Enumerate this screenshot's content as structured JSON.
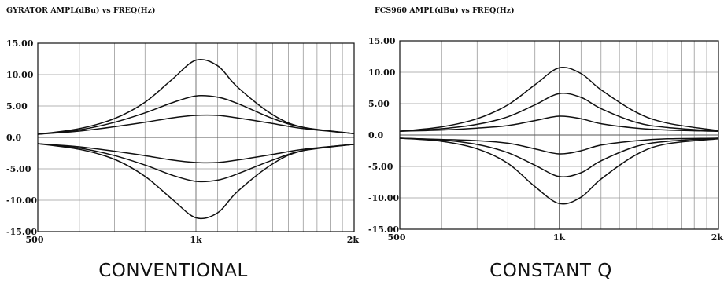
{
  "chart_data": [
    {
      "type": "line",
      "title": "GYRATOR AMPL(dBu) vs FREQ(Hz)",
      "caption": "CONVENTIONAL",
      "xlabel": "",
      "ylabel": "",
      "x_scale": "log",
      "xlim": [
        500,
        2000
      ],
      "ylim": [
        -15,
        15
      ],
      "x_ticks": [
        {
          "value": 500,
          "label": "500"
        },
        {
          "value": 1000,
          "label": "1k"
        },
        {
          "value": 2000,
          "label": "2k"
        }
      ],
      "y_ticks": [
        {
          "value": 15,
          "label": "15.00"
        },
        {
          "value": 10,
          "label": "10.00"
        },
        {
          "value": 5,
          "label": "5.00"
        },
        {
          "value": 0,
          "label": "0.0"
        },
        {
          "value": -5,
          "label": "-5.00"
        },
        {
          "value": -10,
          "label": "-10.00"
        },
        {
          "value": -15,
          "label": "-15.00"
        }
      ],
      "grid": true,
      "line_color": "#111111",
      "series": [
        {
          "x": [
            500,
            600,
            700,
            800,
            900,
            1000,
            1100,
            1200,
            1400,
            1600,
            2000
          ],
          "y": [
            0.5,
            1.4,
            3.0,
            5.6,
            9.2,
            12.3,
            11.4,
            8.0,
            3.6,
            1.6,
            0.6
          ]
        },
        {
          "x": [
            500,
            600,
            700,
            800,
            900,
            1000,
            1100,
            1200,
            1400,
            1600,
            2000
          ],
          "y": [
            0.5,
            1.2,
            2.4,
            3.9,
            5.5,
            6.6,
            6.4,
            5.4,
            3.0,
            1.6,
            0.6
          ]
        },
        {
          "x": [
            500,
            600,
            700,
            800,
            900,
            1000,
            1100,
            1200,
            1400,
            1600,
            2000
          ],
          "y": [
            0.5,
            1.0,
            1.7,
            2.4,
            3.1,
            3.5,
            3.5,
            3.1,
            2.2,
            1.4,
            0.6
          ]
        },
        {
          "x": [
            500,
            600,
            700,
            800,
            900,
            1000,
            1100,
            1200,
            1400,
            1600,
            2000
          ],
          "y": [
            -1.0,
            -1.5,
            -2.2,
            -2.9,
            -3.6,
            -4.0,
            -4.0,
            -3.6,
            -2.7,
            -1.9,
            -1.1
          ]
        },
        {
          "x": [
            500,
            600,
            700,
            800,
            900,
            1000,
            1100,
            1200,
            1400,
            1600,
            2000
          ],
          "y": [
            -1.0,
            -1.7,
            -2.9,
            -4.4,
            -6.0,
            -7.0,
            -6.8,
            -5.8,
            -3.6,
            -2.1,
            -1.1
          ]
        },
        {
          "x": [
            500,
            600,
            700,
            800,
            900,
            1000,
            1100,
            1200,
            1400,
            1600,
            2000
          ],
          "y": [
            -1.0,
            -1.9,
            -3.5,
            -6.2,
            -9.8,
            -12.8,
            -12.0,
            -8.6,
            -4.2,
            -2.1,
            -1.1
          ]
        }
      ]
    },
    {
      "type": "line",
      "title": "FCS960 AMPL(dBu) vs FREQ(Hz)",
      "caption": "CONSTANT Q",
      "xlabel": "",
      "ylabel": "",
      "x_scale": "log",
      "xlim": [
        500,
        2000
      ],
      "ylim": [
        -15,
        15
      ],
      "x_ticks": [
        {
          "value": 500,
          "label": "500"
        },
        {
          "value": 1000,
          "label": "1k"
        },
        {
          "value": 2000,
          "label": "2k"
        }
      ],
      "y_ticks": [
        {
          "value": 15,
          "label": "15.00"
        },
        {
          "value": 10,
          "label": "10.00"
        },
        {
          "value": 5,
          "label": "5.00"
        },
        {
          "value": 0,
          "label": "0.0"
        },
        {
          "value": -5,
          "label": "-5.00"
        },
        {
          "value": -10,
          "label": "-10.00"
        },
        {
          "value": -15,
          "label": "-15.00"
        }
      ],
      "grid": true,
      "line_color": "#111111",
      "series": [
        {
          "x": [
            500,
            600,
            700,
            800,
            900,
            1000,
            1100,
            1200,
            1400,
            1600,
            2000
          ],
          "y": [
            0.6,
            1.3,
            2.6,
            4.8,
            8.0,
            10.7,
            9.8,
            7.2,
            3.6,
            1.9,
            0.7
          ]
        },
        {
          "x": [
            500,
            600,
            700,
            800,
            900,
            1000,
            1100,
            1200,
            1400,
            1600,
            2000
          ],
          "y": [
            0.6,
            1.0,
            1.7,
            2.9,
            4.8,
            6.6,
            6.0,
            4.2,
            2.0,
            1.2,
            0.6
          ]
        },
        {
          "x": [
            500,
            600,
            700,
            800,
            900,
            1000,
            1100,
            1200,
            1400,
            1600,
            2000
          ],
          "y": [
            0.6,
            0.8,
            1.1,
            1.5,
            2.3,
            3.0,
            2.6,
            1.8,
            1.1,
            0.8,
            0.6
          ]
        },
        {
          "x": [
            500,
            600,
            700,
            800,
            900,
            1000,
            1100,
            1200,
            1400,
            1600,
            2000
          ],
          "y": [
            -0.5,
            -0.7,
            -0.9,
            -1.3,
            -2.2,
            -3.0,
            -2.5,
            -1.6,
            -0.9,
            -0.6,
            -0.5
          ]
        },
        {
          "x": [
            500,
            600,
            700,
            800,
            900,
            1000,
            1100,
            1200,
            1400,
            1600,
            2000
          ],
          "y": [
            -0.5,
            -0.8,
            -1.5,
            -2.8,
            -4.8,
            -6.6,
            -6.0,
            -4.1,
            -1.8,
            -1.0,
            -0.5
          ]
        },
        {
          "x": [
            500,
            600,
            700,
            800,
            900,
            1000,
            1100,
            1200,
            1400,
            1600,
            2000
          ],
          "y": [
            -0.5,
            -1.0,
            -2.2,
            -4.5,
            -8.2,
            -10.9,
            -9.9,
            -7.0,
            -3.1,
            -1.4,
            -0.6
          ]
        }
      ]
    }
  ]
}
